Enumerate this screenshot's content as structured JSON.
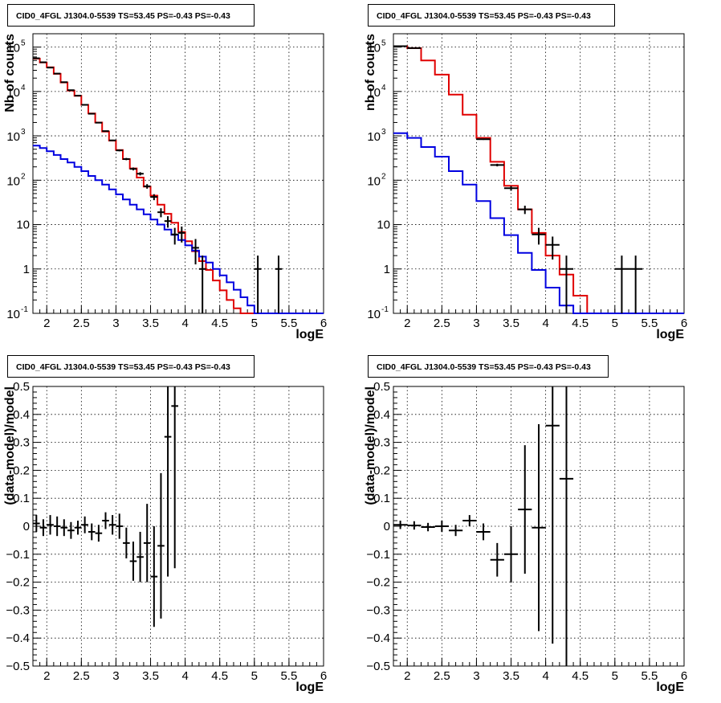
{
  "colors": {
    "data": "#000000",
    "total_model": "#e00000",
    "source_model": "#0000e0",
    "grid": "#000000"
  },
  "chart_data": [
    {
      "type": "line",
      "title": "CID0_4FGL J1304.0-5539 TS=53.45 PS=-0.43 PS=-0.43",
      "xlabel": "logE",
      "ylabel": "Nb of counts",
      "xlim": [
        1.8,
        6.0
      ],
      "ylim": [
        0.1,
        200000
      ],
      "yscale": "log",
      "grid": true,
      "x_ticks": [
        2,
        2.5,
        3,
        3.5,
        4,
        4.5,
        5,
        5.5,
        6
      ],
      "y_ticks": [
        {
          "v": 0.1,
          "base": "10",
          "exp": "-1"
        },
        {
          "v": 1,
          "label": "1"
        },
        {
          "v": 10,
          "label": "10"
        },
        {
          "v": 100,
          "base": "10",
          "exp": "2"
        },
        {
          "v": 1000,
          "base": "10",
          "exp": "3"
        },
        {
          "v": 10000,
          "base": "10",
          "exp": "4"
        },
        {
          "v": 100000,
          "base": "10",
          "exp": "5"
        }
      ],
      "bin_width": 0.1,
      "bins_start": 1.8,
      "series": [
        {
          "role": "total_model",
          "values": [
            55000,
            45000,
            35000,
            25000,
            16000,
            10500,
            8000,
            5000,
            3200,
            2000,
            1250,
            780,
            480,
            300,
            185,
            115,
            72,
            45,
            28,
            17.5,
            11,
            6.8,
            4.2,
            2.5,
            1.5,
            0.95,
            0.55,
            0.33,
            0.2,
            0.13,
            0.1,
            0.1,
            0.1,
            0.1,
            0.1,
            0.1,
            0.1,
            0.1,
            0.1,
            0.1,
            0.1,
            0.1
          ]
        },
        {
          "role": "source_model",
          "values": [
            600,
            530,
            450,
            370,
            300,
            250,
            200,
            160,
            125,
            100,
            80,
            62,
            48,
            37,
            28,
            22,
            17,
            13,
            10,
            7.7,
            5.9,
            4.5,
            3.4,
            2.6,
            1.9,
            1.4,
            1.0,
            0.72,
            0.5,
            0.34,
            0.23,
            0.15,
            0.1,
            0.1,
            0.1,
            0.1,
            0.1,
            0.1,
            0.1,
            0.1,
            0.1,
            0.1
          ]
        },
        {
          "role": "data",
          "points": [
            {
              "x": 1.85,
              "y": 56000
            },
            {
              "x": 1.95,
              "y": 45500
            },
            {
              "x": 2.05,
              "y": 34500
            },
            {
              "x": 2.15,
              "y": 25300
            },
            {
              "x": 2.25,
              "y": 16200
            },
            {
              "x": 2.35,
              "y": 10700
            },
            {
              "x": 2.45,
              "y": 8050
            },
            {
              "x": 2.55,
              "y": 5000
            },
            {
              "x": 2.65,
              "y": 3150
            },
            {
              "x": 2.75,
              "y": 1980
            },
            {
              "x": 2.85,
              "y": 1280
            },
            {
              "x": 2.95,
              "y": 790
            },
            {
              "x": 3.05,
              "y": 470
            },
            {
              "x": 3.15,
              "y": 300
            },
            {
              "x": 3.25,
              "y": 180
            },
            {
              "x": 3.35,
              "y": 140
            },
            {
              "x": 3.45,
              "y": 73
            },
            {
              "x": 3.55,
              "y": 42
            },
            {
              "x": 3.65,
              "y": 19
            },
            {
              "x": 3.75,
              "y": 12
            },
            {
              "x": 3.85,
              "y": 6
            },
            {
              "x": 3.95,
              "y": 6.5
            },
            {
              "x": 4.15,
              "y": 3
            },
            {
              "x": 4.25,
              "y": 1
            },
            {
              "x": 5.05,
              "y": 1
            },
            {
              "x": 5.35,
              "y": 1
            }
          ]
        }
      ]
    },
    {
      "type": "line",
      "title": "CID0_4FGL J1304.0-5539 TS=53.45 PS=-0.43 PS=-0.43",
      "xlabel": "logE",
      "ylabel": "nb of counts",
      "xlim": [
        1.8,
        6.0
      ],
      "ylim": [
        0.1,
        200000
      ],
      "yscale": "log",
      "grid": true,
      "x_ticks": [
        2,
        2.5,
        3,
        3.5,
        4,
        4.5,
        5,
        5.5,
        6
      ],
      "y_ticks": [
        {
          "v": 0.1,
          "base": "10",
          "exp": "-1"
        },
        {
          "v": 1,
          "label": "1"
        },
        {
          "v": 10,
          "label": "10"
        },
        {
          "v": 100,
          "base": "10",
          "exp": "2"
        },
        {
          "v": 1000,
          "base": "10",
          "exp": "3"
        },
        {
          "v": 10000,
          "base": "10",
          "exp": "4"
        },
        {
          "v": 100000,
          "base": "10",
          "exp": "5"
        }
      ],
      "bin_width": 0.2,
      "bins_start": 1.8,
      "series": [
        {
          "role": "total_model",
          "values": [
            105000,
            95000,
            50000,
            24000,
            8500,
            3000,
            900,
            260,
            75,
            22,
            6.5,
            2.0,
            0.75,
            0.25,
            0.1,
            0.1,
            0.1,
            0.1,
            0.1,
            0.1,
            0.1
          ]
        },
        {
          "role": "source_model",
          "values": [
            1150,
            900,
            560,
            340,
            160,
            80,
            34,
            14,
            5.8,
            2.3,
            0.95,
            0.38,
            0.15,
            0.1,
            0.1,
            0.1,
            0.1,
            0.1,
            0.1,
            0.1,
            0.1
          ]
        },
        {
          "role": "data",
          "points": [
            {
              "x": 1.9,
              "y": 105000
            },
            {
              "x": 2.1,
              "y": 95000
            },
            {
              "x": 3.1,
              "y": 840
            },
            {
              "x": 3.3,
              "y": 220
            },
            {
              "x": 3.5,
              "y": 66
            },
            {
              "x": 3.7,
              "y": 22
            },
            {
              "x": 3.9,
              "y": 6
            },
            {
              "x": 4.1,
              "y": 3.5
            },
            {
              "x": 4.3,
              "y": 1
            },
            {
              "x": 5.1,
              "y": 1
            },
            {
              "x": 5.3,
              "y": 1
            }
          ]
        }
      ]
    },
    {
      "type": "scatter",
      "title": "CID0_4FGL J1304.0-5539 TS=53.45 PS=-0.43 PS=-0.43",
      "xlabel": "logE",
      "ylabel": "(data-model)/model",
      "xlim": [
        1.8,
        6.0
      ],
      "ylim": [
        -0.5,
        0.5
      ],
      "grid": true,
      "x_ticks": [
        2,
        2.5,
        3,
        3.5,
        4,
        4.5,
        5,
        5.5,
        6
      ],
      "y_ticks": [
        {
          "v": -0.5,
          "label": "−0.5"
        },
        {
          "v": -0.4,
          "label": "−0.4"
        },
        {
          "v": -0.3,
          "label": "−0.3"
        },
        {
          "v": -0.2,
          "label": "−0.2"
        },
        {
          "v": -0.1,
          "label": "−0.1"
        },
        {
          "v": 0,
          "label": "0"
        },
        {
          "v": 0.1,
          "label": "0.1"
        },
        {
          "v": 0.2,
          "label": "0.2"
        },
        {
          "v": 0.3,
          "label": "0.3"
        },
        {
          "v": 0.4,
          "label": "0.4"
        },
        {
          "v": 0.5,
          "label": "0.5"
        }
      ],
      "x_halfwidth": 0.05,
      "points": [
        {
          "x": 1.85,
          "y": 0.01,
          "err": 0.03
        },
        {
          "x": 1.95,
          "y": -0.005,
          "err": 0.03
        },
        {
          "x": 2.05,
          "y": 0.005,
          "err": 0.035
        },
        {
          "x": 2.15,
          "y": 0.0,
          "err": 0.035
        },
        {
          "x": 2.25,
          "y": -0.005,
          "err": 0.03
        },
        {
          "x": 2.35,
          "y": -0.015,
          "err": 0.03
        },
        {
          "x": 2.45,
          "y": -0.005,
          "err": 0.025
        },
        {
          "x": 2.55,
          "y": 0.005,
          "err": 0.03
        },
        {
          "x": 2.65,
          "y": -0.02,
          "err": 0.03
        },
        {
          "x": 2.75,
          "y": -0.025,
          "err": 0.03
        },
        {
          "x": 2.85,
          "y": 0.02,
          "err": 0.03
        },
        {
          "x": 2.95,
          "y": 0.005,
          "err": 0.035
        },
        {
          "x": 3.05,
          "y": 0.0,
          "err": 0.045
        },
        {
          "x": 3.15,
          "y": -0.06,
          "err": 0.055
        },
        {
          "x": 3.25,
          "y": -0.125,
          "err": 0.07
        },
        {
          "x": 3.35,
          "y": -0.11,
          "err": 0.09
        },
        {
          "x": 3.45,
          "y": -0.06,
          "err": 0.14
        },
        {
          "x": 3.55,
          "y": -0.18,
          "err": 0.18
        },
        {
          "x": 3.65,
          "y": -0.07,
          "err": 0.26
        },
        {
          "x": 3.75,
          "y": 0.32,
          "err": 0.5
        },
        {
          "x": 3.85,
          "y": 0.43,
          "err": 0.58
        }
      ]
    },
    {
      "type": "scatter",
      "title": "CID0_4FGL J1304.0-5539 TS=53.45 PS=-0.43 PS=-0.43",
      "xlabel": "logE",
      "ylabel": "(data-model)/model",
      "xlim": [
        1.8,
        6.0
      ],
      "ylim": [
        -0.5,
        0.5
      ],
      "grid": true,
      "x_ticks": [
        2,
        2.5,
        3,
        3.5,
        4,
        4.5,
        5,
        5.5,
        6
      ],
      "y_ticks": [
        {
          "v": -0.5,
          "label": "−0.5"
        },
        {
          "v": -0.4,
          "label": "−0.4"
        },
        {
          "v": -0.3,
          "label": "−0.3"
        },
        {
          "v": -0.2,
          "label": "−0.2"
        },
        {
          "v": -0.1,
          "label": "−0.1"
        },
        {
          "v": 0,
          "label": "0"
        },
        {
          "v": 0.1,
          "label": "0.1"
        },
        {
          "v": 0.2,
          "label": "0.2"
        },
        {
          "v": 0.3,
          "label": "0.3"
        },
        {
          "v": 0.4,
          "label": "0.4"
        },
        {
          "v": 0.5,
          "label": "0.5"
        }
      ],
      "x_halfwidth": 0.1,
      "points": [
        {
          "x": 1.9,
          "y": 0.005,
          "err": 0.015
        },
        {
          "x": 2.1,
          "y": 0.003,
          "err": 0.015
        },
        {
          "x": 2.3,
          "y": -0.003,
          "err": 0.015
        },
        {
          "x": 2.5,
          "y": 0.0,
          "err": 0.02
        },
        {
          "x": 2.7,
          "y": -0.015,
          "err": 0.02
        },
        {
          "x": 2.9,
          "y": 0.02,
          "err": 0.02
        },
        {
          "x": 3.1,
          "y": -0.02,
          "err": 0.03
        },
        {
          "x": 3.3,
          "y": -0.12,
          "err": 0.06
        },
        {
          "x": 3.5,
          "y": -0.1,
          "err": 0.1
        },
        {
          "x": 3.7,
          "y": 0.06,
          "err": 0.23
        },
        {
          "x": 3.9,
          "y": -0.005,
          "err": 0.37
        },
        {
          "x": 4.1,
          "y": 0.36,
          "err": 0.78
        },
        {
          "x": 4.3,
          "y": 0.17,
          "err": 1.2
        }
      ]
    }
  ]
}
